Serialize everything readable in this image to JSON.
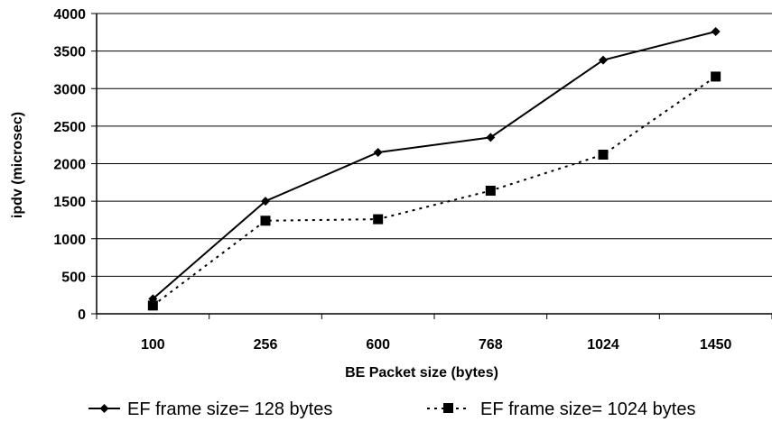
{
  "chart_data": {
    "type": "line",
    "categories": [
      "100",
      "256",
      "600",
      "768",
      "1024",
      "1450"
    ],
    "series": [
      {
        "name": "EF frame size= 128 bytes",
        "values": [
          200,
          1500,
          2150,
          2350,
          3380,
          3760
        ],
        "color": "#000000",
        "line_style": "solid",
        "marker": "diamond"
      },
      {
        "name": "EF frame size= 1024 bytes",
        "values": [
          110,
          1240,
          1260,
          1640,
          2120,
          3160
        ],
        "color": "#000000",
        "line_style": "dotted",
        "marker": "square"
      }
    ],
    "xlabel": "BE Packet size (bytes)",
    "ylabel": "ipdv (microsec)",
    "ylim": [
      0,
      4000
    ],
    "yticks": [
      "0",
      "500",
      "1000",
      "1500",
      "2000",
      "2500",
      "3000",
      "3500",
      "4000"
    ],
    "grid": "horizontal",
    "legend": "bottom"
  }
}
